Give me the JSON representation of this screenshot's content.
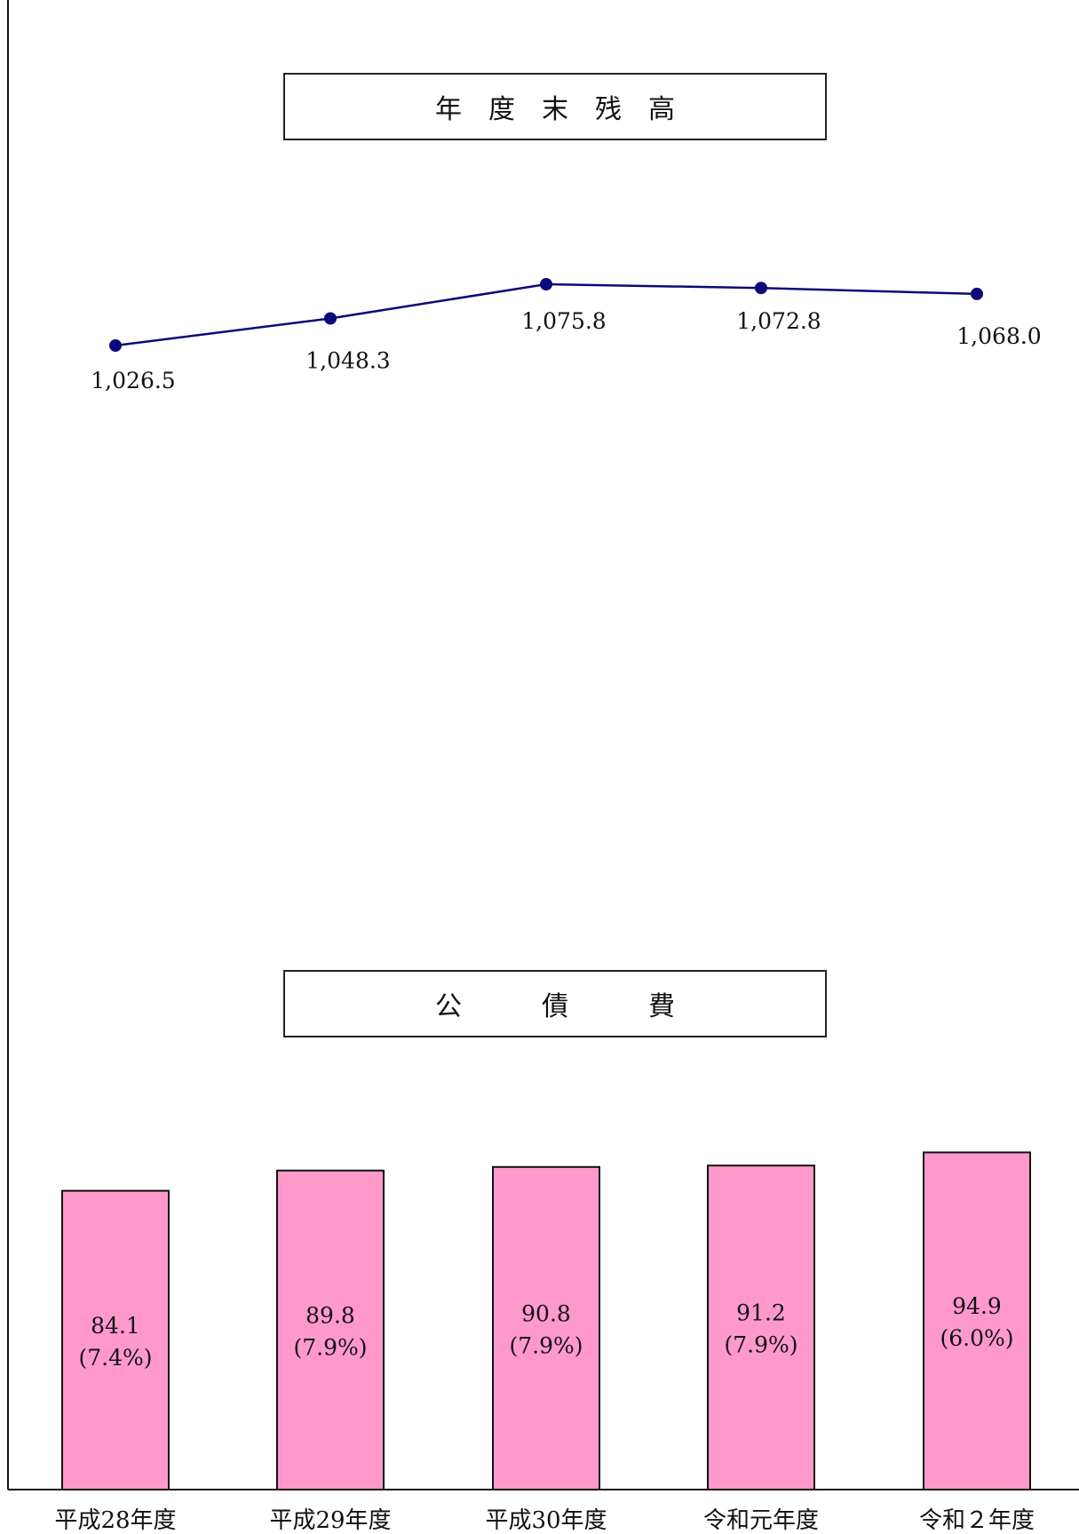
{
  "chart_data": [
    {
      "type": "line",
      "title": "年　度　末　残　高",
      "categories": [
        "平成28年度",
        "平成29年度",
        "平成30年度",
        "令和元年度",
        "令和２年度"
      ],
      "values": [
        1026.5,
        1048.3,
        1075.8,
        1072.8,
        1068.0
      ],
      "data_labels": [
        "1,026.5",
        "1,048.3",
        "1,075.8",
        "1,072.8",
        "1,068.0"
      ],
      "color": "#0a0a7a",
      "grid": false
    },
    {
      "type": "bar",
      "title": "公　　　債　　　費",
      "categories": [
        "平成28年度",
        "平成29年度",
        "平成30年度",
        "令和元年度",
        "令和２年度"
      ],
      "values": [
        84.1,
        89.8,
        90.8,
        91.2,
        94.9
      ],
      "data_labels": [
        "84.1",
        "89.8",
        "90.8",
        "91.2",
        "94.9"
      ],
      "percent_labels": [
        "(7.4%)",
        "(7.9%)",
        "(7.9%)",
        "(7.9%)",
        "(6.0%)"
      ],
      "color": "#ff99cc",
      "grid": false
    }
  ]
}
